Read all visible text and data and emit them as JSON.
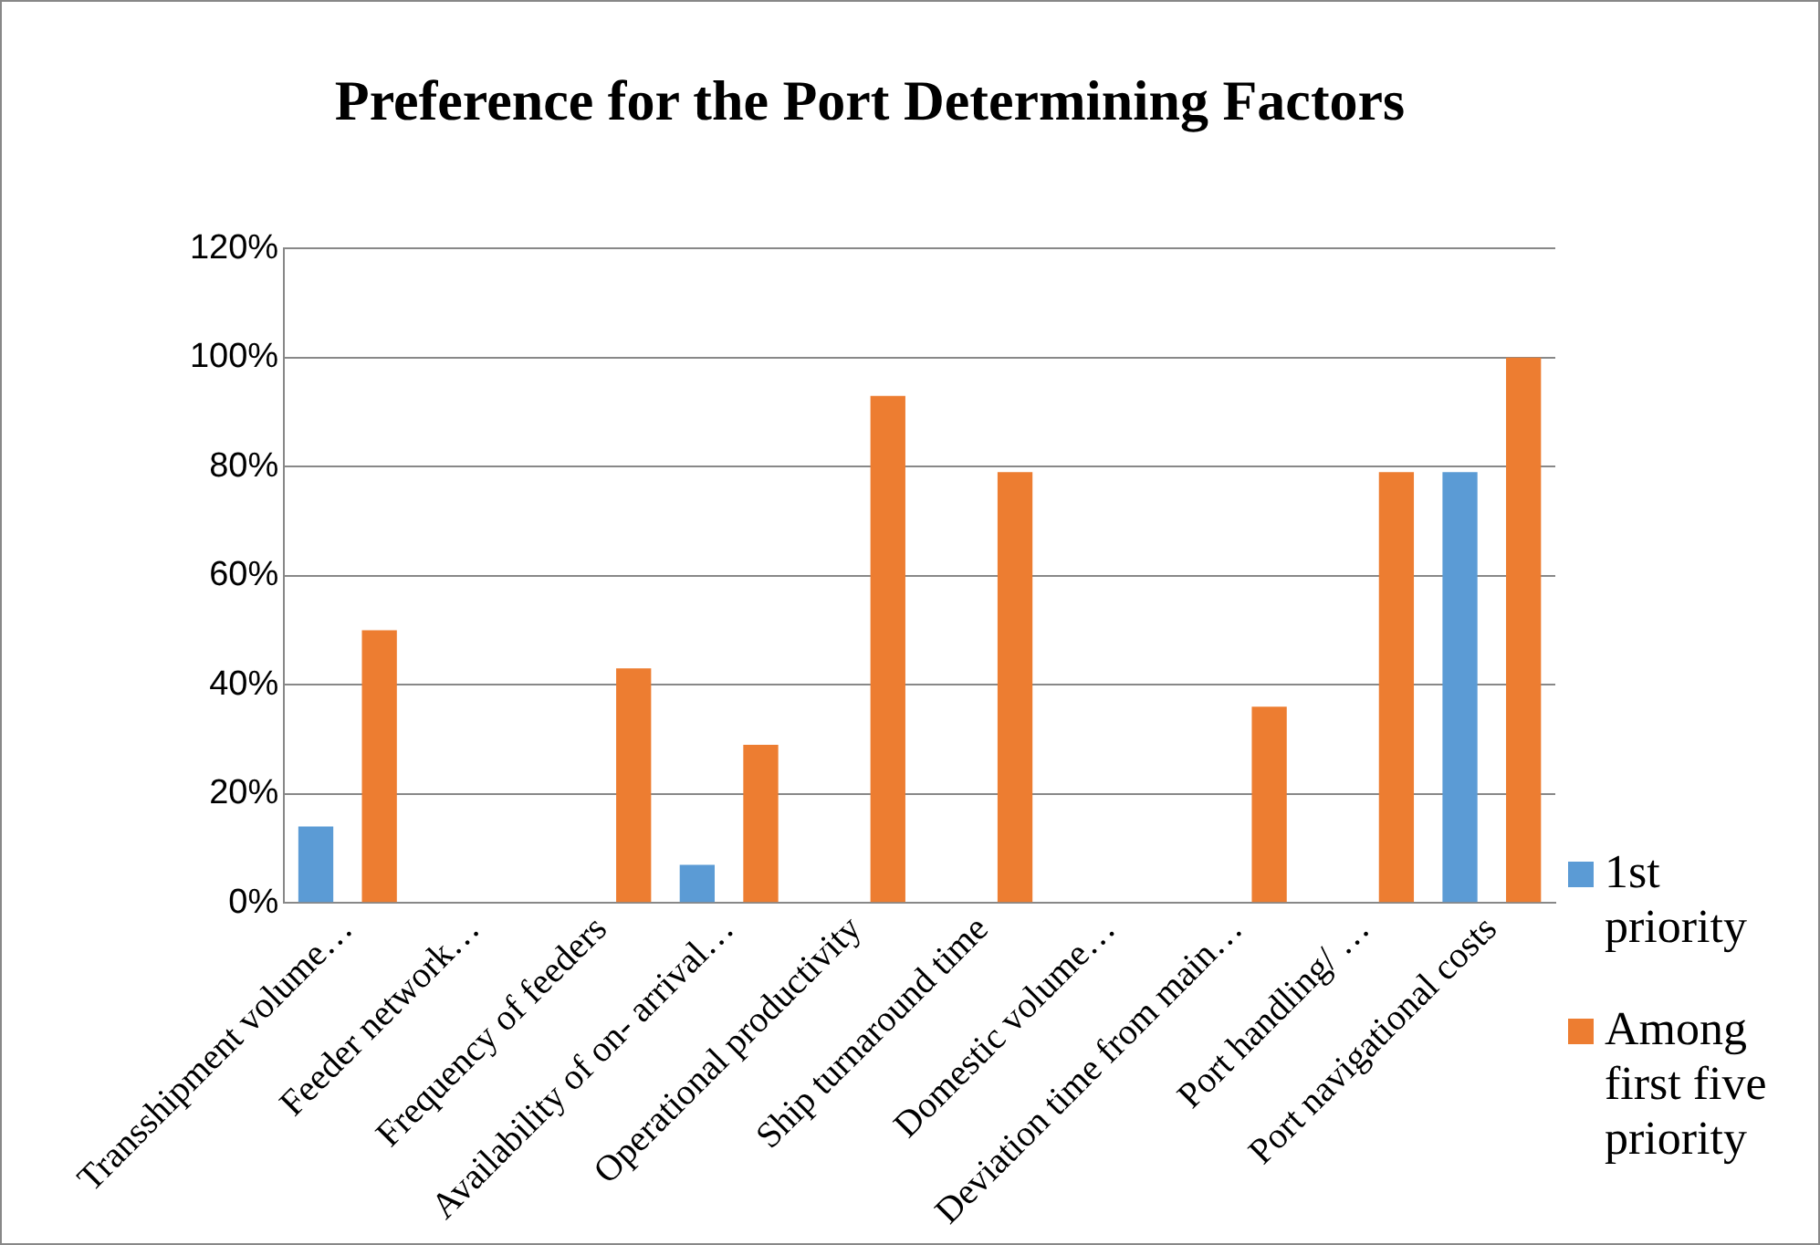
{
  "chart_data": {
    "type": "bar",
    "title": "Preference for the Port Determining Factors",
    "categories": [
      "Transshipment volume…",
      "Feeder network…",
      "Frequency of feeders",
      "Availability of on- arrival…",
      "Operational productivity",
      "Ship turnaround time",
      "Domestic volume…",
      "Deviation time from main…",
      "Port handling/ …",
      "Port navigational costs"
    ],
    "series": [
      {
        "name": "1st priority",
        "color": "#5b9bd5",
        "values": [
          0.14,
          0,
          0,
          0.07,
          0,
          0,
          0,
          0,
          0,
          0.79
        ]
      },
      {
        "name": "Among first five priority",
        "color": "#ed7d31",
        "values": [
          0.5,
          0,
          0.43,
          0.29,
          0.93,
          0.79,
          0,
          0.36,
          0.79,
          1.0
        ]
      }
    ],
    "ylim": [
      0,
      1.2
    ],
    "yticks": [
      {
        "value": 0,
        "label": "0%"
      },
      {
        "value": 0.2,
        "label": "20%"
      },
      {
        "value": 0.4,
        "label": "40%"
      },
      {
        "value": 0.6,
        "label": "60%"
      },
      {
        "value": 0.8,
        "label": "80%"
      },
      {
        "value": 1.0,
        "label": "100%"
      },
      {
        "value": 1.2,
        "label": "120%"
      }
    ],
    "grid": "y",
    "legend": "right"
  }
}
